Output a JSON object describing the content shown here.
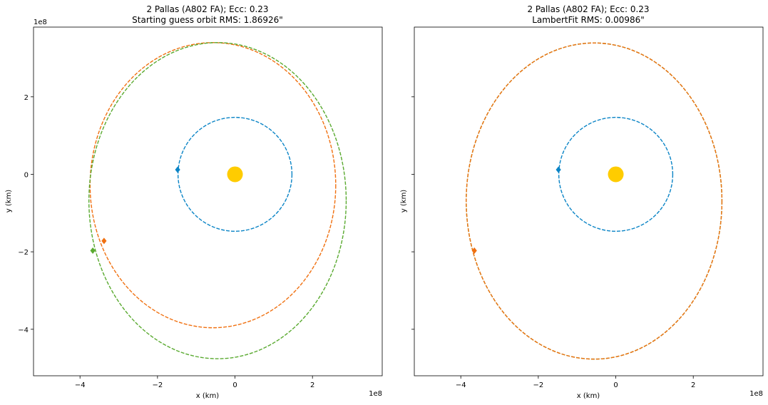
{
  "chart_data": [
    {
      "type": "line",
      "title": "2 Pallas (A802 FA); Ecc: 0.23",
      "subtitle": "Starting guess orbit RMS: 1.86926\"",
      "xlabel": "x (km)",
      "ylabel": "y (km)",
      "xlim": [
        -5.2,
        3.8
      ],
      "ylim": [
        -5.2,
        3.8
      ],
      "x_ticks": [
        "−4",
        "−2",
        "0",
        "2"
      ],
      "y_ticks": [
        "−4",
        "−2",
        "0",
        "2"
      ],
      "x_exponent": "1e8",
      "y_exponent": "1e8",
      "show_y_ticklabels": true,
      "sun": {
        "x": 0,
        "y": 0,
        "color": "#ffcc00"
      },
      "orbits": [
        {
          "kind": "circle",
          "cx": 0,
          "cy": 0,
          "r": 1.47,
          "color": "#0a84c6"
        },
        {
          "kind": "ellipse",
          "cx": -0.57,
          "cy": -0.28,
          "rx": 3.17,
          "ry": 3.68,
          "color": "#f07010"
        },
        {
          "kind": "ellipse",
          "cx": -0.45,
          "cy": -0.68,
          "rx": 3.32,
          "ry": 4.08,
          "color": "#5aaa30"
        }
      ],
      "markers": [
        {
          "x": -1.48,
          "y": 0.12,
          "color": "#0a84c6"
        },
        {
          "x": -3.38,
          "y": -1.72,
          "color": "#f07010"
        },
        {
          "x": -3.67,
          "y": -1.97,
          "color": "#5aaa30"
        }
      ]
    },
    {
      "type": "line",
      "title": "2 Pallas (A802 FA); Ecc: 0.23",
      "subtitle": "LambertFit RMS: 0.00986\"",
      "xlabel": "x (km)",
      "ylabel": "y (km)",
      "xlim": [
        -5.2,
        3.8
      ],
      "ylim": [
        -5.2,
        3.8
      ],
      "x_ticks": [
        "−4",
        "−2",
        "0",
        "2"
      ],
      "y_ticks": [
        "−4",
        "−2",
        "0",
        "2"
      ],
      "x_exponent": "1e8",
      "y_exponent": "",
      "show_y_ticklabels": false,
      "sun": {
        "x": 0,
        "y": 0,
        "color": "#ffcc00"
      },
      "orbits": [
        {
          "kind": "circle",
          "cx": 0,
          "cy": 0,
          "r": 1.47,
          "color": "#0a84c6"
        },
        {
          "kind": "ellipse",
          "cx": -0.56,
          "cy": -0.69,
          "rx": 3.3,
          "ry": 4.08,
          "color": "#5aaa30"
        },
        {
          "kind": "ellipse",
          "cx": -0.56,
          "cy": -0.69,
          "rx": 3.3,
          "ry": 4.08,
          "color": "#f07010"
        }
      ],
      "markers": [
        {
          "x": -1.48,
          "y": 0.12,
          "color": "#0a84c6"
        },
        {
          "x": -3.65,
          "y": -1.97,
          "color": "#f07010"
        }
      ]
    }
  ]
}
